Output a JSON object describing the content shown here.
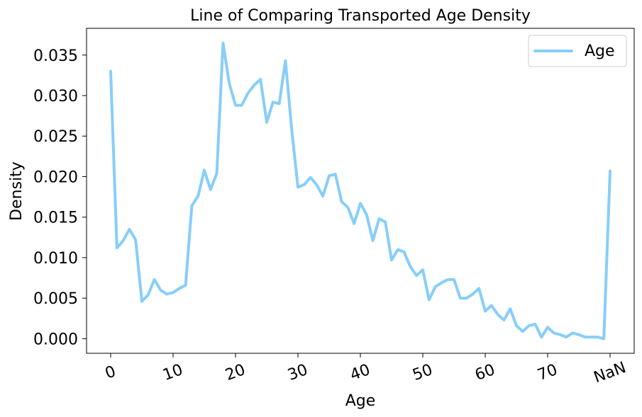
{
  "chart_data": {
    "type": "line",
    "title": "Line of Comparing Transported Age Density",
    "xlabel": "Age",
    "ylabel": "Density",
    "x_tick_labels": [
      "0",
      "10",
      "20",
      "30",
      "40",
      "50",
      "60",
      "70",
      "NaN"
    ],
    "y_tick_labels": [
      "0.000",
      "0.005",
      "0.010",
      "0.015",
      "0.020",
      "0.025",
      "0.030",
      "0.035"
    ],
    "y_ticks": [
      0.0,
      0.005,
      0.01,
      0.015,
      0.02,
      0.025,
      0.03,
      0.035
    ],
    "ylim": [
      -0.0018,
      0.0383
    ],
    "grid": false,
    "legend": {
      "position": "top-right",
      "entries": [
        "Age"
      ]
    },
    "series": [
      {
        "name": "Age",
        "color": "#87CEFA",
        "values": [
          0.033,
          0.0112,
          0.0121,
          0.0135,
          0.0122,
          0.0046,
          0.0054,
          0.0073,
          0.006,
          0.0055,
          0.0057,
          0.0062,
          0.0066,
          0.0164,
          0.0176,
          0.0208,
          0.0184,
          0.0204,
          0.0365,
          0.0315,
          0.0288,
          0.0288,
          0.0303,
          0.0313,
          0.032,
          0.0267,
          0.0292,
          0.029,
          0.0343,
          0.0258,
          0.0187,
          0.019,
          0.0199,
          0.019,
          0.0176,
          0.0201,
          0.0203,
          0.0169,
          0.0162,
          0.0142,
          0.0167,
          0.0153,
          0.0121,
          0.0148,
          0.0144,
          0.0097,
          0.011,
          0.0107,
          0.0089,
          0.0078,
          0.0085,
          0.0048,
          0.0064,
          0.0069,
          0.0073,
          0.0073,
          0.005,
          0.005,
          0.0055,
          0.0062,
          0.0034,
          0.0041,
          0.003,
          0.0023,
          0.0037,
          0.0016,
          0.0009,
          0.0016,
          0.0018,
          0.0002,
          0.0014,
          0.0007,
          0.0005,
          0.0002,
          0.0007,
          0.0005,
          0.0002,
          0.0002,
          0.0002,
          0.0,
          0.0207
        ]
      }
    ]
  }
}
